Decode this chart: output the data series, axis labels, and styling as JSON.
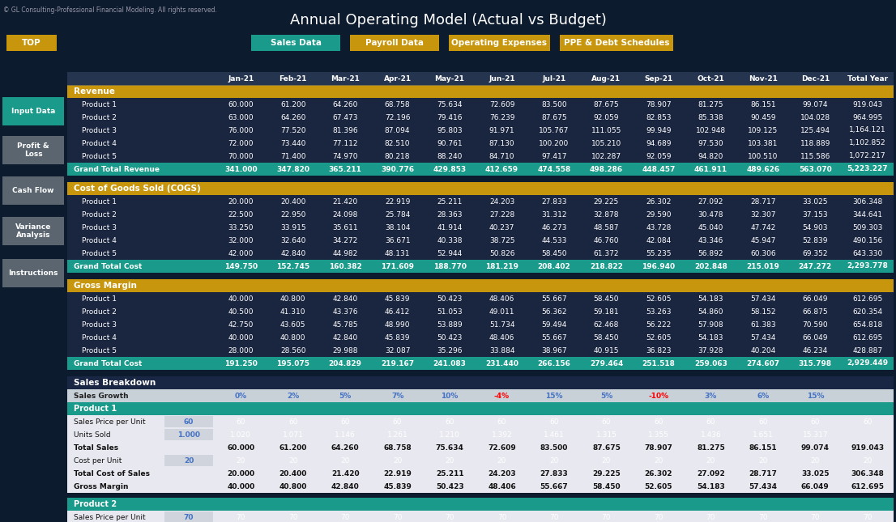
{
  "title": "Annual Operating Model (Actual vs Budget)",
  "copyright": "© GL Consulting-Professional Financial Modeling. All rights reserved.",
  "bg_color": "#0d1b2e",
  "header_gold": "#c8960c",
  "header_teal": "#1a9a8a",
  "header_navy": "#1a2744",
  "header_darknavy": "#0d1b35",
  "side_teal": "#1a9a8a",
  "side_gray": "#5a6570",
  "product_header_teal": "#1a9a8a",
  "sales_breakdown_header": "#1a2744",
  "col_headers": [
    "Jan-21",
    "Feb-21",
    "Mar-21",
    "Apr-21",
    "May-21",
    "Jun-21",
    "Jul-21",
    "Aug-21",
    "Sep-21",
    "Oct-21",
    "Nov-21",
    "Dec-21",
    "Total Year"
  ],
  "revenue": {
    "label": "Revenue",
    "rows": [
      [
        "Product 1",
        60.0,
        61.2,
        64.26,
        68.758,
        75.634,
        72.609,
        83.5,
        87.675,
        78.907,
        81.275,
        86.151,
        99.074,
        919.043
      ],
      [
        "Product 2",
        63.0,
        64.26,
        67.473,
        72.196,
        79.416,
        76.239,
        87.675,
        92.059,
        82.853,
        85.338,
        90.459,
        104.028,
        964.995
      ],
      [
        "Product 3",
        76.0,
        77.52,
        81.396,
        87.094,
        95.803,
        91.971,
        105.767,
        111.055,
        99.949,
        102.948,
        109.125,
        125.494,
        1164.121
      ],
      [
        "Product 4",
        72.0,
        73.44,
        77.112,
        82.51,
        90.761,
        87.13,
        100.2,
        105.21,
        94.689,
        97.53,
        103.381,
        118.889,
        1102.852
      ],
      [
        "Product 5",
        70.0,
        71.4,
        74.97,
        80.218,
        88.24,
        84.71,
        97.417,
        102.287,
        92.059,
        94.82,
        100.51,
        115.586,
        1072.217
      ]
    ],
    "total": [
      "Grand Total Revenue",
      341.0,
      347.82,
      365.211,
      390.776,
      429.853,
      412.659,
      474.558,
      498.286,
      448.457,
      461.911,
      489.626,
      563.07,
      5223.227
    ]
  },
  "cogs": {
    "label": "Cost of Goods Sold (COGS)",
    "rows": [
      [
        "Product 1",
        20.0,
        20.4,
        21.42,
        22.919,
        25.211,
        24.203,
        27.833,
        29.225,
        26.302,
        27.092,
        28.717,
        33.025,
        306.348
      ],
      [
        "Product 2",
        22.5,
        22.95,
        24.098,
        25.784,
        28.363,
        27.228,
        31.312,
        32.878,
        29.59,
        30.478,
        32.307,
        37.153,
        344.641
      ],
      [
        "Product 3",
        33.25,
        33.915,
        35.611,
        38.104,
        41.914,
        40.237,
        46.273,
        48.587,
        43.728,
        45.04,
        47.742,
        54.903,
        509.303
      ],
      [
        "Product 4",
        32.0,
        32.64,
        34.272,
        36.671,
        40.338,
        38.725,
        44.533,
        46.76,
        42.084,
        43.346,
        45.947,
        52.839,
        490.156
      ],
      [
        "Product 5",
        42.0,
        42.84,
        44.982,
        48.131,
        52.944,
        50.826,
        58.45,
        61.372,
        55.235,
        56.892,
        60.306,
        69.352,
        643.33
      ]
    ],
    "total": [
      "Grand Total Cost",
      149.75,
      152.745,
      160.382,
      171.609,
      188.77,
      181.219,
      208.402,
      218.822,
      196.94,
      202.848,
      215.019,
      247.272,
      2293.778
    ]
  },
  "gross_margin": {
    "label": "Gross Margin",
    "rows": [
      [
        "Product 1",
        40.0,
        40.8,
        42.84,
        45.839,
        50.423,
        48.406,
        55.667,
        58.45,
        52.605,
        54.183,
        57.434,
        66.049,
        612.695
      ],
      [
        "Product 2",
        40.5,
        41.31,
        43.376,
        46.412,
        51.053,
        49.011,
        56.362,
        59.181,
        53.263,
        54.86,
        58.152,
        66.875,
        620.354
      ],
      [
        "Product 3",
        42.75,
        43.605,
        45.785,
        48.99,
        53.889,
        51.734,
        59.494,
        62.468,
        56.222,
        57.908,
        61.383,
        70.59,
        654.818
      ],
      [
        "Product 4",
        40.0,
        40.8,
        42.84,
        45.839,
        50.423,
        48.406,
        55.667,
        58.45,
        52.605,
        54.183,
        57.434,
        66.049,
        612.695
      ],
      [
        "Product 5",
        28.0,
        28.56,
        29.988,
        32.087,
        35.296,
        33.884,
        38.967,
        40.915,
        36.823,
        37.928,
        40.204,
        46.234,
        428.887
      ]
    ],
    "total": [
      "Grand Total Cost",
      191.25,
      195.075,
      204.829,
      219.167,
      241.083,
      231.44,
      266.156,
      279.464,
      251.518,
      259.063,
      274.607,
      315.798,
      2929.449
    ]
  },
  "sales_breakdown": {
    "label": "Sales Breakdown",
    "growth_label": "Sales Growth",
    "growth_values": [
      "0%",
      "2%",
      "5%",
      "7%",
      "10%",
      "-4%",
      "15%",
      "5%",
      "-10%",
      "3%",
      "6%",
      "15%"
    ],
    "growth_colors": [
      "#4472c4",
      "#4472c4",
      "#4472c4",
      "#4472c4",
      "#4472c4",
      "#ff0000",
      "#4472c4",
      "#4472c4",
      "#ff0000",
      "#4472c4",
      "#4472c4",
      "#4472c4"
    ],
    "product1_label": "Product 1",
    "price_label": "Sales Price per Unit",
    "price_input": 60,
    "price_values": [
      60,
      60,
      60,
      60,
      60,
      60,
      60,
      60,
      60,
      60,
      60,
      60,
      60
    ],
    "units_label": "Units Sold",
    "units_input": "1.000",
    "units_values": [
      "1.020",
      "1.071",
      "1.146",
      "1.261",
      "1.210",
      "1.392",
      "1.461",
      "1.315",
      "1.355",
      "1.436",
      "1.651",
      "15.317"
    ],
    "total_sales_label": "Total Sales",
    "total_sales_values": [
      60.0,
      61.2,
      64.26,
      68.758,
      75.634,
      72.609,
      83.5,
      87.675,
      78.907,
      81.275,
      86.151,
      99.074,
      919.043
    ],
    "cost_label": "Cost per Unit",
    "cost_input": 20,
    "cost_values": [
      20,
      20,
      20,
      20,
      20,
      20,
      20,
      20,
      20,
      20,
      20,
      20,
      20
    ],
    "total_cost_label": "Total Cost of Sales",
    "total_cost_values": [
      20.0,
      20.4,
      21.42,
      22.919,
      25.211,
      24.203,
      27.833,
      29.225,
      26.302,
      27.092,
      28.717,
      33.025,
      306.348
    ],
    "gm_label": "Gross Margin",
    "gm_values": [
      40.0,
      40.8,
      42.84,
      45.839,
      50.423,
      48.406,
      55.667,
      58.45,
      52.605,
      54.183,
      57.434,
      66.049,
      612.695
    ],
    "product2_label": "Product 2",
    "product2_price_label": "Sales Price per Unit",
    "product2_price_input": 70,
    "product2_price_values": [
      70,
      70,
      70,
      70,
      70,
      70,
      70,
      70,
      70,
      70,
      70,
      70,
      70
    ]
  }
}
